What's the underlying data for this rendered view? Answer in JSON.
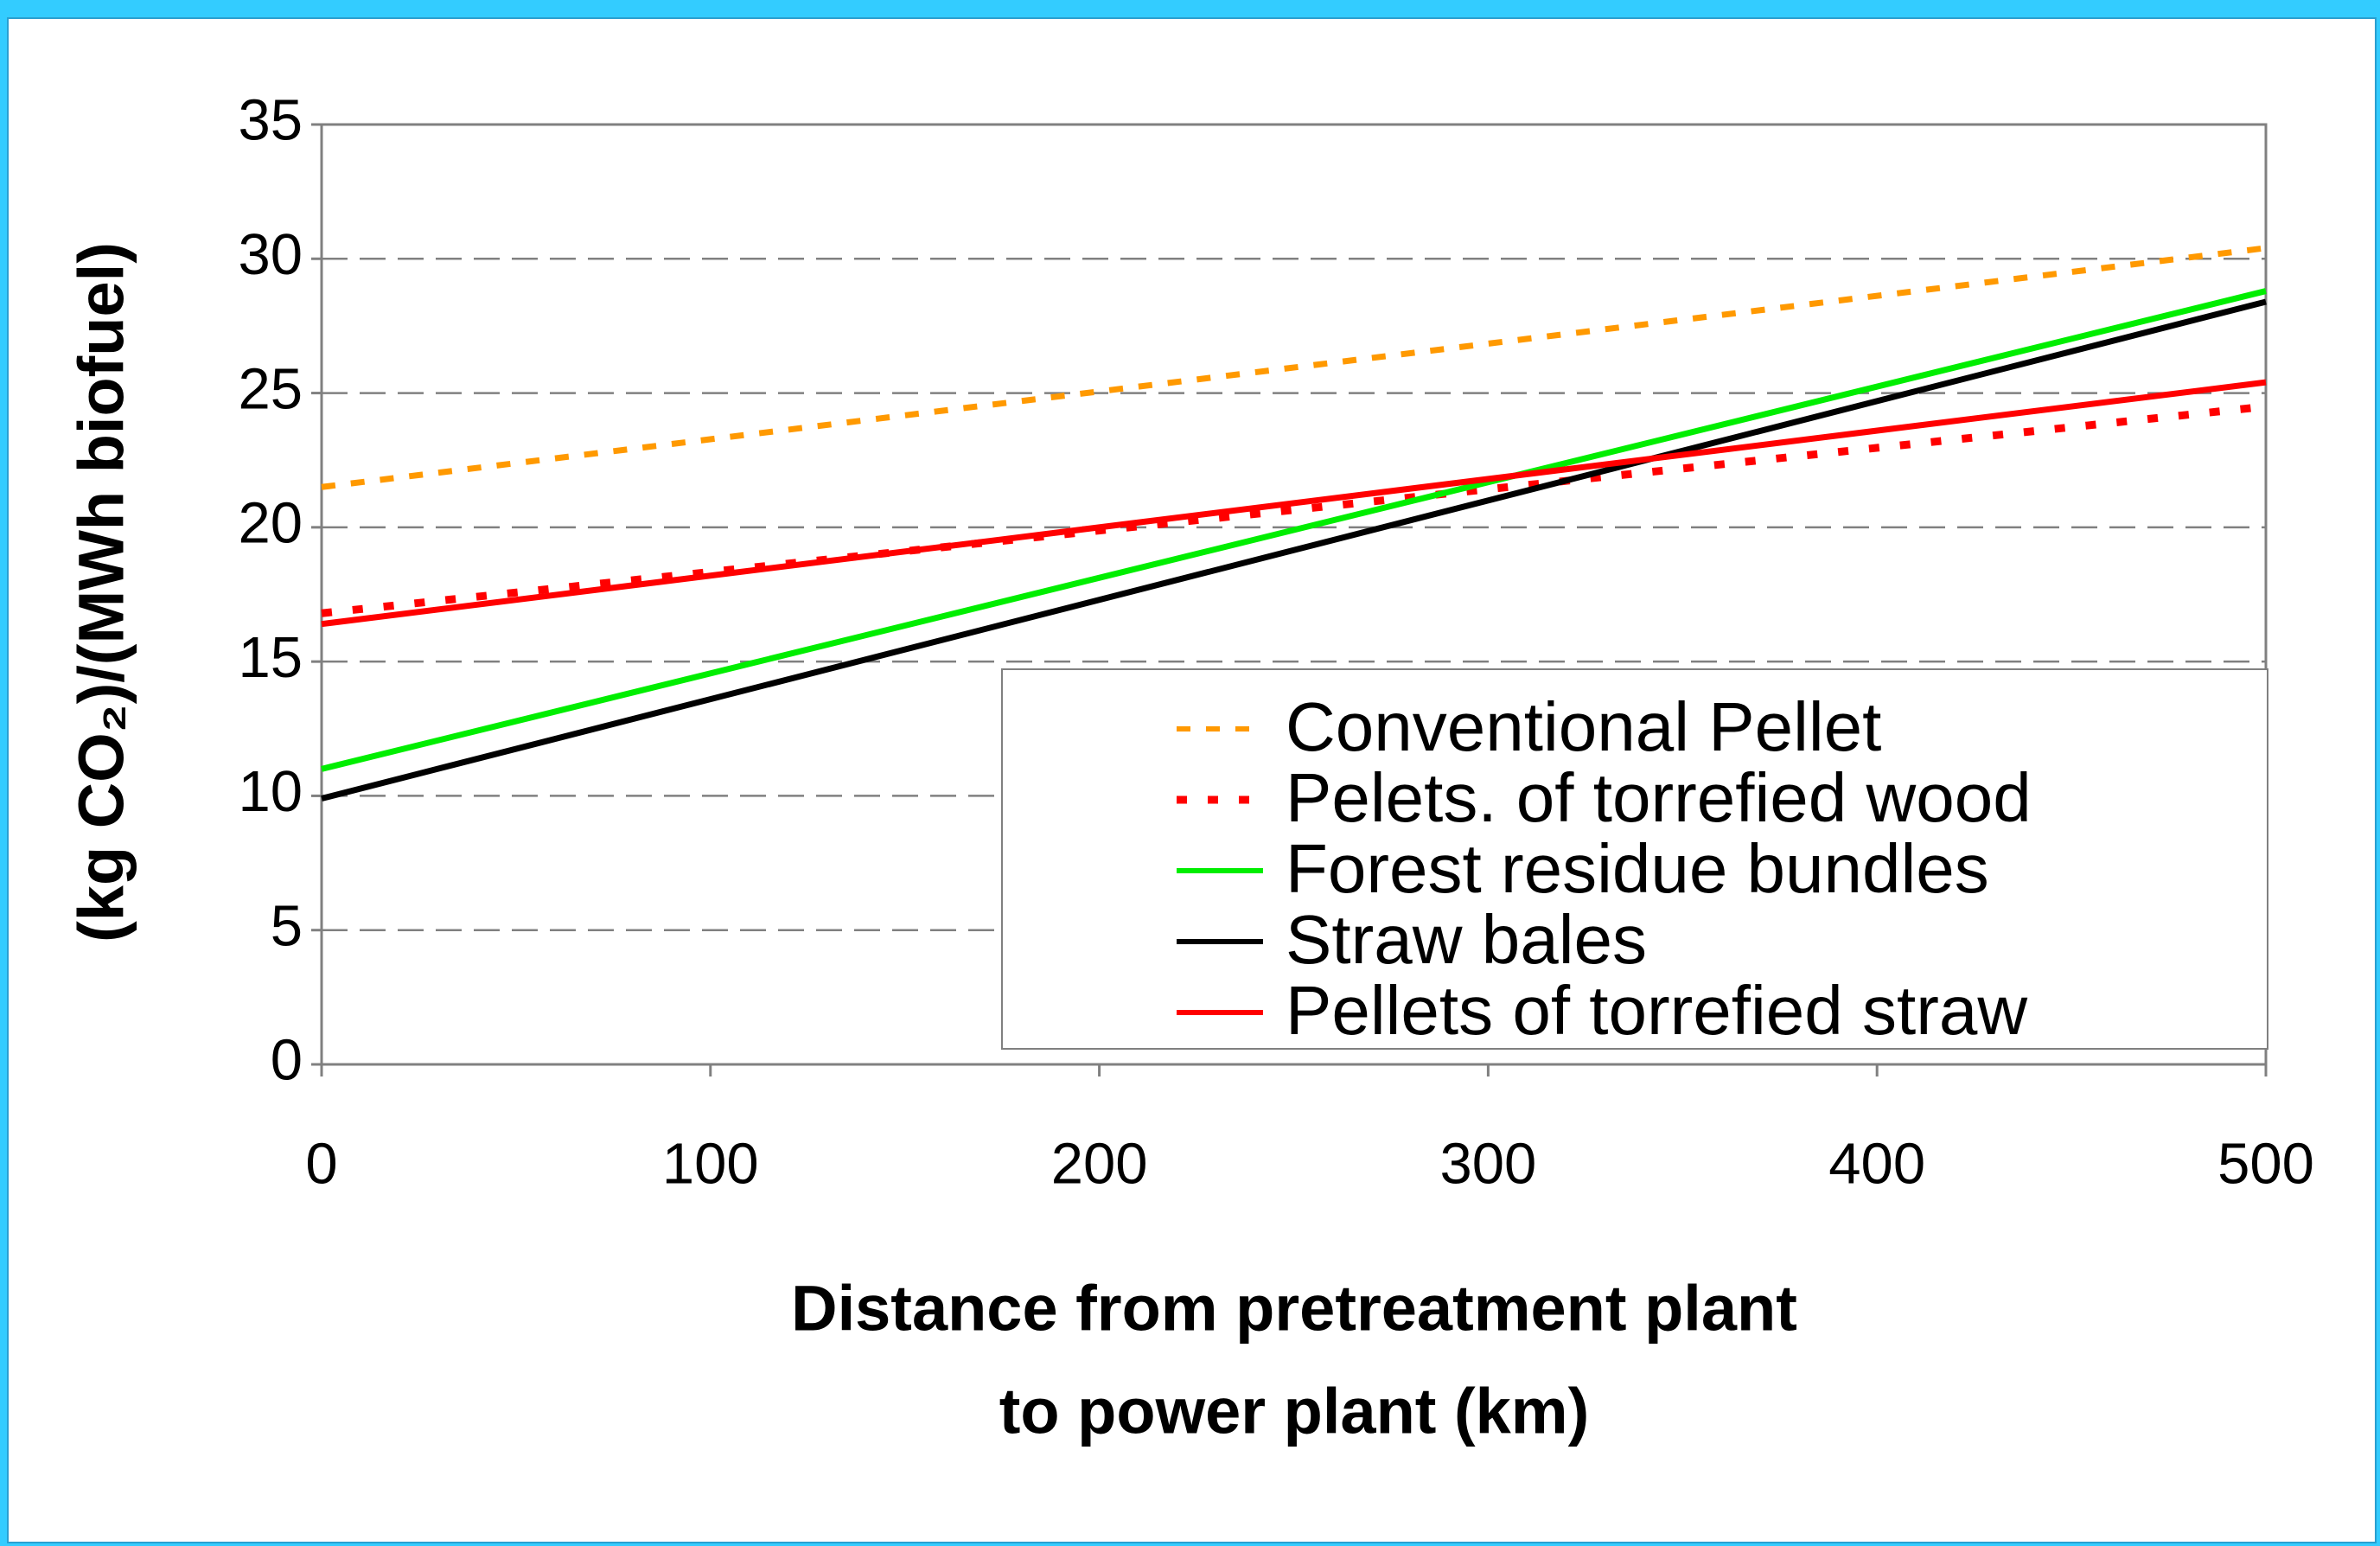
{
  "chart_data": {
    "type": "line",
    "y_label": "(kg CO₂)/(MWh biofuel)",
    "x_label": [
      "Distance from pretreatment plant",
      "to power plant (km)"
    ],
    "x": [
      0,
      500
    ],
    "series": [
      {
        "name": "Conventional Pellet",
        "color": "#ff9900",
        "style": "dashed",
        "values": [
          21.5,
          30.4
        ]
      },
      {
        "name": "Pelets. of torrefied wood",
        "color": "#ff0000",
        "style": "dotted",
        "values": [
          16.8,
          24.5
        ]
      },
      {
        "name": "Forest residue bundles",
        "color": "#00ee00",
        "style": "solid",
        "values": [
          11.0,
          28.8
        ]
      },
      {
        "name": "Straw bales",
        "color": "#000000",
        "style": "solid",
        "values": [
          9.9,
          28.4
        ]
      },
      {
        "name": "Pellets of torrefied straw",
        "color": "#ff0000",
        "style": "solid",
        "values": [
          16.4,
          25.4
        ]
      }
    ],
    "xlim": [
      0,
      500
    ],
    "xticks": [
      0,
      100,
      200,
      300,
      400,
      500
    ],
    "ylim": [
      0,
      35
    ],
    "yticks": [
      0,
      5,
      10,
      15,
      20,
      25,
      30,
      35
    ],
    "grid": true,
    "legend": "lower right"
  }
}
